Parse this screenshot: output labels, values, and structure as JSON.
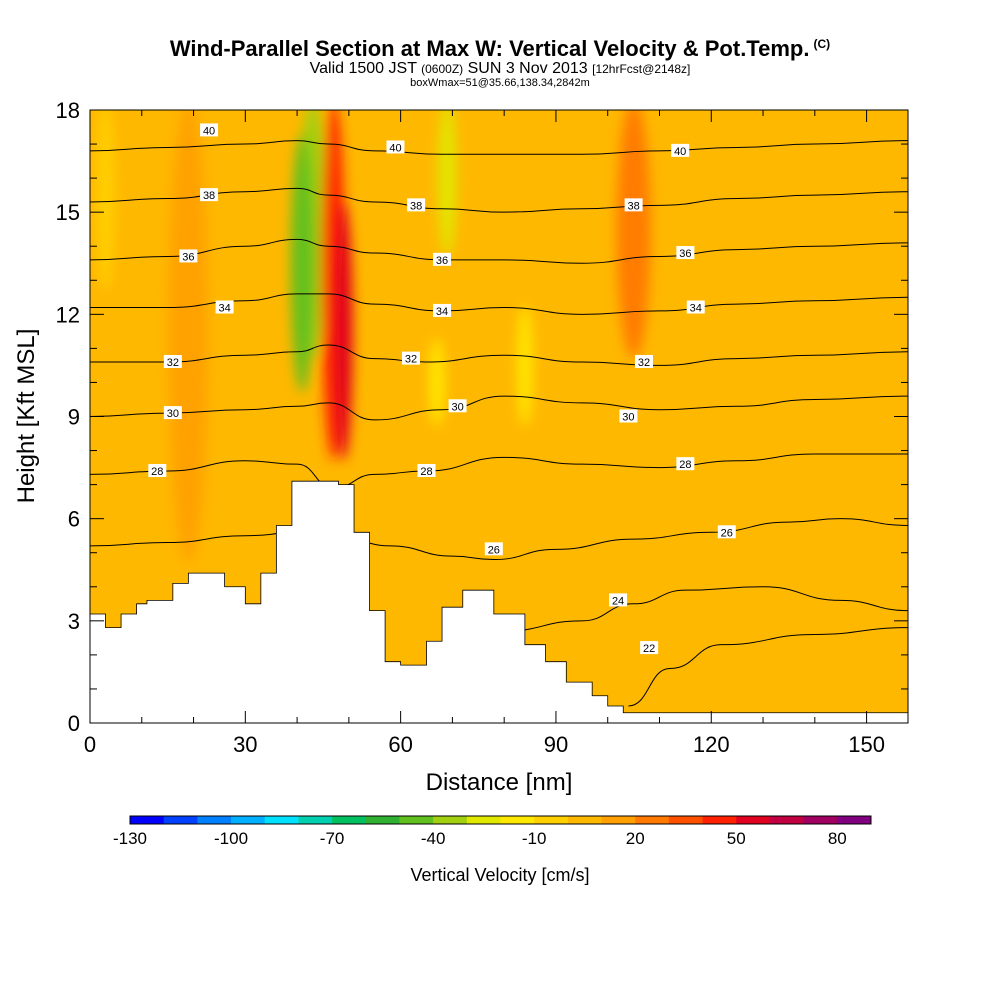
{
  "header": {
    "title": "Wind-Parallel Section at Max W: Vertical Velocity & Pot.Temp.",
    "copyright": "(C)",
    "valid_prefix": "Valid 1500 JST",
    "valid_utc": "(0600Z)",
    "valid_date": "SUN 3 Nov 2013",
    "forecast": "[12hrFcst@2148z]",
    "box_info": "boxWmax=51@35.66,138.34,2842m"
  },
  "chart_data": {
    "type": "heatmap",
    "xlabel": "Distance [nm]",
    "ylabel": "Height [Kft MSL]",
    "xlim": [
      0,
      158
    ],
    "ylim": [
      0,
      18
    ],
    "xticks": [
      0,
      30,
      60,
      90,
      120,
      150
    ],
    "yticks": [
      0,
      3,
      6,
      9,
      12,
      15,
      18
    ],
    "terrain_top_kft": [
      [
        0,
        3.2
      ],
      [
        3,
        2.8
      ],
      [
        6,
        3.2
      ],
      [
        9,
        3.5
      ],
      [
        11,
        3.6
      ],
      [
        16,
        4.1
      ],
      [
        19,
        4.4
      ],
      [
        26,
        4.0
      ],
      [
        30,
        3.5
      ],
      [
        33,
        4.4
      ],
      [
        36,
        5.8
      ],
      [
        39,
        7.1
      ],
      [
        48,
        7.0
      ],
      [
        51,
        5.6
      ],
      [
        54,
        3.3
      ],
      [
        57,
        1.8
      ],
      [
        60,
        1.7
      ],
      [
        65,
        2.4
      ],
      [
        68,
        3.4
      ],
      [
        72,
        3.9
      ],
      [
        78,
        3.2
      ],
      [
        84,
        2.3
      ],
      [
        88,
        1.8
      ],
      [
        92,
        1.2
      ],
      [
        97,
        0.8
      ],
      [
        100,
        0.5
      ],
      [
        103,
        0.3
      ],
      [
        158,
        0.3
      ]
    ],
    "theta_contours": [
      {
        "level": 22,
        "label": "22",
        "points": [
          [
            104,
            0.5
          ],
          [
            112,
            1.6
          ],
          [
            122,
            2.3
          ],
          [
            140,
            2.6
          ],
          [
            158,
            2.8
          ]
        ]
      },
      {
        "level": 24,
        "label": "24",
        "points": [
          [
            80,
            2.7
          ],
          [
            95,
            3.0
          ],
          [
            105,
            3.5
          ],
          [
            115,
            3.9
          ],
          [
            130,
            4.0
          ],
          [
            145,
            3.6
          ],
          [
            158,
            3.3
          ]
        ]
      },
      {
        "level": 26,
        "label": "26",
        "points": [
          [
            0,
            5.2
          ],
          [
            15,
            5.3
          ],
          [
            30,
            5.5
          ],
          [
            45,
            5.7
          ],
          [
            58,
            5.2
          ],
          [
            70,
            4.9
          ],
          [
            78,
            4.8
          ],
          [
            90,
            5.1
          ],
          [
            105,
            5.4
          ],
          [
            120,
            5.6
          ],
          [
            135,
            5.9
          ],
          [
            145,
            6.0
          ],
          [
            158,
            5.8
          ]
        ]
      },
      {
        "level": 28,
        "label": "28",
        "points": [
          [
            0,
            7.3
          ],
          [
            15,
            7.4
          ],
          [
            30,
            7.7
          ],
          [
            40,
            7.6
          ],
          [
            47,
            6.9
          ],
          [
            55,
            7.3
          ],
          [
            65,
            7.4
          ],
          [
            80,
            7.8
          ],
          [
            95,
            7.6
          ],
          [
            110,
            7.5
          ],
          [
            125,
            7.7
          ],
          [
            140,
            7.9
          ],
          [
            158,
            7.9
          ]
        ]
      },
      {
        "level": 30,
        "label": "30",
        "points": [
          [
            0,
            9.0
          ],
          [
            15,
            9.1
          ],
          [
            30,
            9.2
          ],
          [
            40,
            9.3
          ],
          [
            46,
            9.4
          ],
          [
            55,
            8.9
          ],
          [
            68,
            9.2
          ],
          [
            80,
            9.6
          ],
          [
            95,
            9.4
          ],
          [
            110,
            9.2
          ],
          [
            125,
            9.3
          ],
          [
            140,
            9.5
          ],
          [
            158,
            9.6
          ]
        ]
      },
      {
        "level": 32,
        "label": "32",
        "points": [
          [
            0,
            10.6
          ],
          [
            15,
            10.6
          ],
          [
            30,
            10.8
          ],
          [
            40,
            10.9
          ],
          [
            46,
            11.1
          ],
          [
            55,
            10.7
          ],
          [
            65,
            10.6
          ],
          [
            80,
            10.8
          ],
          [
            95,
            10.6
          ],
          [
            110,
            10.5
          ],
          [
            125,
            10.7
          ],
          [
            140,
            10.8
          ],
          [
            158,
            10.9
          ]
        ]
      },
      {
        "level": 34,
        "label": "34",
        "points": [
          [
            0,
            12.2
          ],
          [
            15,
            12.2
          ],
          [
            30,
            12.4
          ],
          [
            40,
            12.6
          ],
          [
            46,
            12.6
          ],
          [
            55,
            12.3
          ],
          [
            68,
            12.1
          ],
          [
            80,
            12.2
          ],
          [
            95,
            12.0
          ],
          [
            110,
            12.1
          ],
          [
            125,
            12.3
          ],
          [
            140,
            12.4
          ],
          [
            158,
            12.5
          ]
        ]
      },
      {
        "level": 36,
        "label": "36",
        "points": [
          [
            0,
            13.6
          ],
          [
            15,
            13.7
          ],
          [
            30,
            14.0
          ],
          [
            40,
            14.2
          ],
          [
            46,
            14.0
          ],
          [
            55,
            13.8
          ],
          [
            68,
            13.6
          ],
          [
            80,
            13.6
          ],
          [
            95,
            13.5
          ],
          [
            110,
            13.7
          ],
          [
            125,
            13.9
          ],
          [
            140,
            14.0
          ],
          [
            158,
            14.1
          ]
        ]
      },
      {
        "level": 38,
        "label": "38",
        "points": [
          [
            0,
            15.3
          ],
          [
            15,
            15.4
          ],
          [
            30,
            15.6
          ],
          [
            40,
            15.7
          ],
          [
            46,
            15.5
          ],
          [
            55,
            15.3
          ],
          [
            68,
            15.1
          ],
          [
            80,
            15.0
          ],
          [
            95,
            15.1
          ],
          [
            110,
            15.2
          ],
          [
            125,
            15.4
          ],
          [
            140,
            15.5
          ],
          [
            158,
            15.6
          ]
        ]
      },
      {
        "level": 40,
        "label": "40",
        "points": [
          [
            0,
            16.8
          ],
          [
            15,
            16.9
          ],
          [
            30,
            17.0
          ],
          [
            40,
            17.1
          ],
          [
            46,
            17.0
          ],
          [
            55,
            16.8
          ],
          [
            68,
            16.7
          ],
          [
            80,
            16.7
          ],
          [
            95,
            16.7
          ],
          [
            110,
            16.8
          ],
          [
            125,
            16.9
          ],
          [
            140,
            17.0
          ],
          [
            158,
            17.1
          ]
        ]
      }
    ],
    "contour_labels": [
      {
        "text": "40",
        "x": 23,
        "y": 17.4
      },
      {
        "text": "38",
        "x": 23,
        "y": 15.5
      },
      {
        "text": "36",
        "x": 19,
        "y": 13.7
      },
      {
        "text": "34",
        "x": 26,
        "y": 12.2
      },
      {
        "text": "32",
        "x": 16,
        "y": 10.6
      },
      {
        "text": "30",
        "x": 16,
        "y": 9.1
      },
      {
        "text": "28",
        "x": 13,
        "y": 7.4
      },
      {
        "text": "40",
        "x": 59,
        "y": 16.9
      },
      {
        "text": "38",
        "x": 63,
        "y": 15.2
      },
      {
        "text": "36",
        "x": 68,
        "y": 13.6
      },
      {
        "text": "34",
        "x": 68,
        "y": 12.1
      },
      {
        "text": "32",
        "x": 62,
        "y": 10.7
      },
      {
        "text": "30",
        "x": 71,
        "y": 9.3
      },
      {
        "text": "28",
        "x": 65,
        "y": 7.4
      },
      {
        "text": "26",
        "x": 78,
        "y": 5.1
      },
      {
        "text": "24",
        "x": 102,
        "y": 3.6
      },
      {
        "text": "22",
        "x": 108,
        "y": 2.2
      },
      {
        "text": "40",
        "x": 114,
        "y": 16.8
      },
      {
        "text": "38",
        "x": 105,
        "y": 15.2
      },
      {
        "text": "36",
        "x": 115,
        "y": 13.8
      },
      {
        "text": "34",
        "x": 117,
        "y": 12.2
      },
      {
        "text": "32",
        "x": 107,
        "y": 10.6
      },
      {
        "text": "30",
        "x": 104,
        "y": 9.0
      },
      {
        "text": "28",
        "x": 115,
        "y": 7.6
      },
      {
        "text": "26",
        "x": 123,
        "y": 5.6
      }
    ],
    "velocity_features": [
      {
        "x_center": 43,
        "x_width": 4,
        "y_bottom": 11,
        "y_top": 18,
        "velocity": -40
      },
      {
        "x_center": 41,
        "x_width": 3,
        "y_bottom": 10,
        "y_top": 17,
        "velocity": -55
      },
      {
        "x_center": 47,
        "x_width": 3,
        "y_bottom": 8,
        "y_top": 18,
        "velocity": 45
      },
      {
        "x_center": 49,
        "x_width": 2,
        "y_bottom": 8,
        "y_top": 15,
        "velocity": 55
      },
      {
        "x_center": 105,
        "x_width": 5,
        "y_bottom": 11,
        "y_top": 18,
        "velocity": 20
      },
      {
        "x_center": 69,
        "x_width": 2,
        "y_bottom": 14,
        "y_top": 18,
        "velocity": -30
      },
      {
        "x_center": 67,
        "x_width": 1.5,
        "y_bottom": 9,
        "y_top": 11,
        "velocity": -15
      },
      {
        "x_center": 84,
        "x_width": 1.5,
        "y_bottom": 9,
        "y_top": 12,
        "velocity": -15
      },
      {
        "x_center": 19,
        "x_width": 6,
        "y_bottom": 5,
        "y_top": 18,
        "velocity": 10
      },
      {
        "x_center": 3,
        "x_width": 2,
        "y_bottom": 13,
        "y_top": 18,
        "velocity": -10
      }
    ],
    "colorbar": {
      "title": "Vertical Velocity [cm/s]",
      "labels": [
        "-130",
        "-100",
        "-70",
        "-40",
        "-10",
        "20",
        "50",
        "80"
      ],
      "colors": [
        "#0000ff",
        "#0040ff",
        "#0080ff",
        "#00b0ff",
        "#00e0ff",
        "#00d0b0",
        "#00c060",
        "#30b030",
        "#60c020",
        "#a0d010",
        "#e0e800",
        "#ffe800",
        "#ffd000",
        "#ffb800",
        "#ffa000",
        "#ff7800",
        "#ff5000",
        "#ff2000",
        "#e00020",
        "#c00040",
        "#a00060",
        "#800080"
      ]
    }
  }
}
